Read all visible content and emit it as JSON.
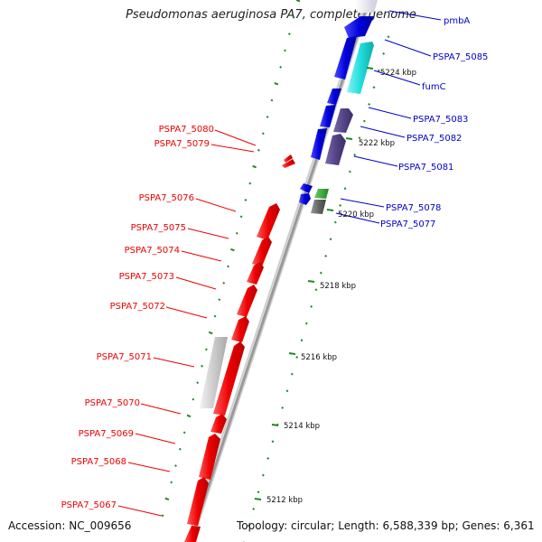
{
  "title": "Pseudomonas aeruginosa PA7, complete genome",
  "footer": {
    "accession": "Accession: NC_009656",
    "topology": "Topology: circular; Length: 6,588,339 bp; Genes: 6,361"
  },
  "colors": {
    "minus_strand": "#ee0000",
    "plus_strand": "#0000dd",
    "highlight": "#22dddd",
    "pseudo": "#554488",
    "rna": "#33aa33",
    "other": "#888888",
    "backbone": "#999999",
    "ruler": "#228822"
  },
  "ticks": [
    {
      "label": "5212 kbp"
    },
    {
      "label": "5214 kbp"
    },
    {
      "label": "5216 kbp"
    },
    {
      "label": "5218 kbp"
    },
    {
      "label": "5220 kbp"
    },
    {
      "label": "5222 kbp"
    },
    {
      "label": "5224 kbp"
    }
  ],
  "labels_left": [
    {
      "text": "PSPA7_5080"
    },
    {
      "text": "PSPA7_5079"
    },
    {
      "text": "PSPA7_5076"
    },
    {
      "text": "PSPA7_5075"
    },
    {
      "text": "PSPA7_5074"
    },
    {
      "text": "PSPA7_5073"
    },
    {
      "text": "PSPA7_5072"
    },
    {
      "text": "PSPA7_5071"
    },
    {
      "text": "PSPA7_5070"
    },
    {
      "text": "PSPA7_5069"
    },
    {
      "text": "PSPA7_5068"
    },
    {
      "text": "PSPA7_5067"
    }
  ],
  "labels_right": [
    {
      "text": "pmbA"
    },
    {
      "text": "PSPA7_5085"
    },
    {
      "text": "fumC"
    },
    {
      "text": "PSPA7_5083"
    },
    {
      "text": "PSPA7_5082"
    },
    {
      "text": "PSPA7_5081"
    },
    {
      "text": "PSPA7_5078"
    },
    {
      "text": "PSPA7_5077"
    }
  ]
}
